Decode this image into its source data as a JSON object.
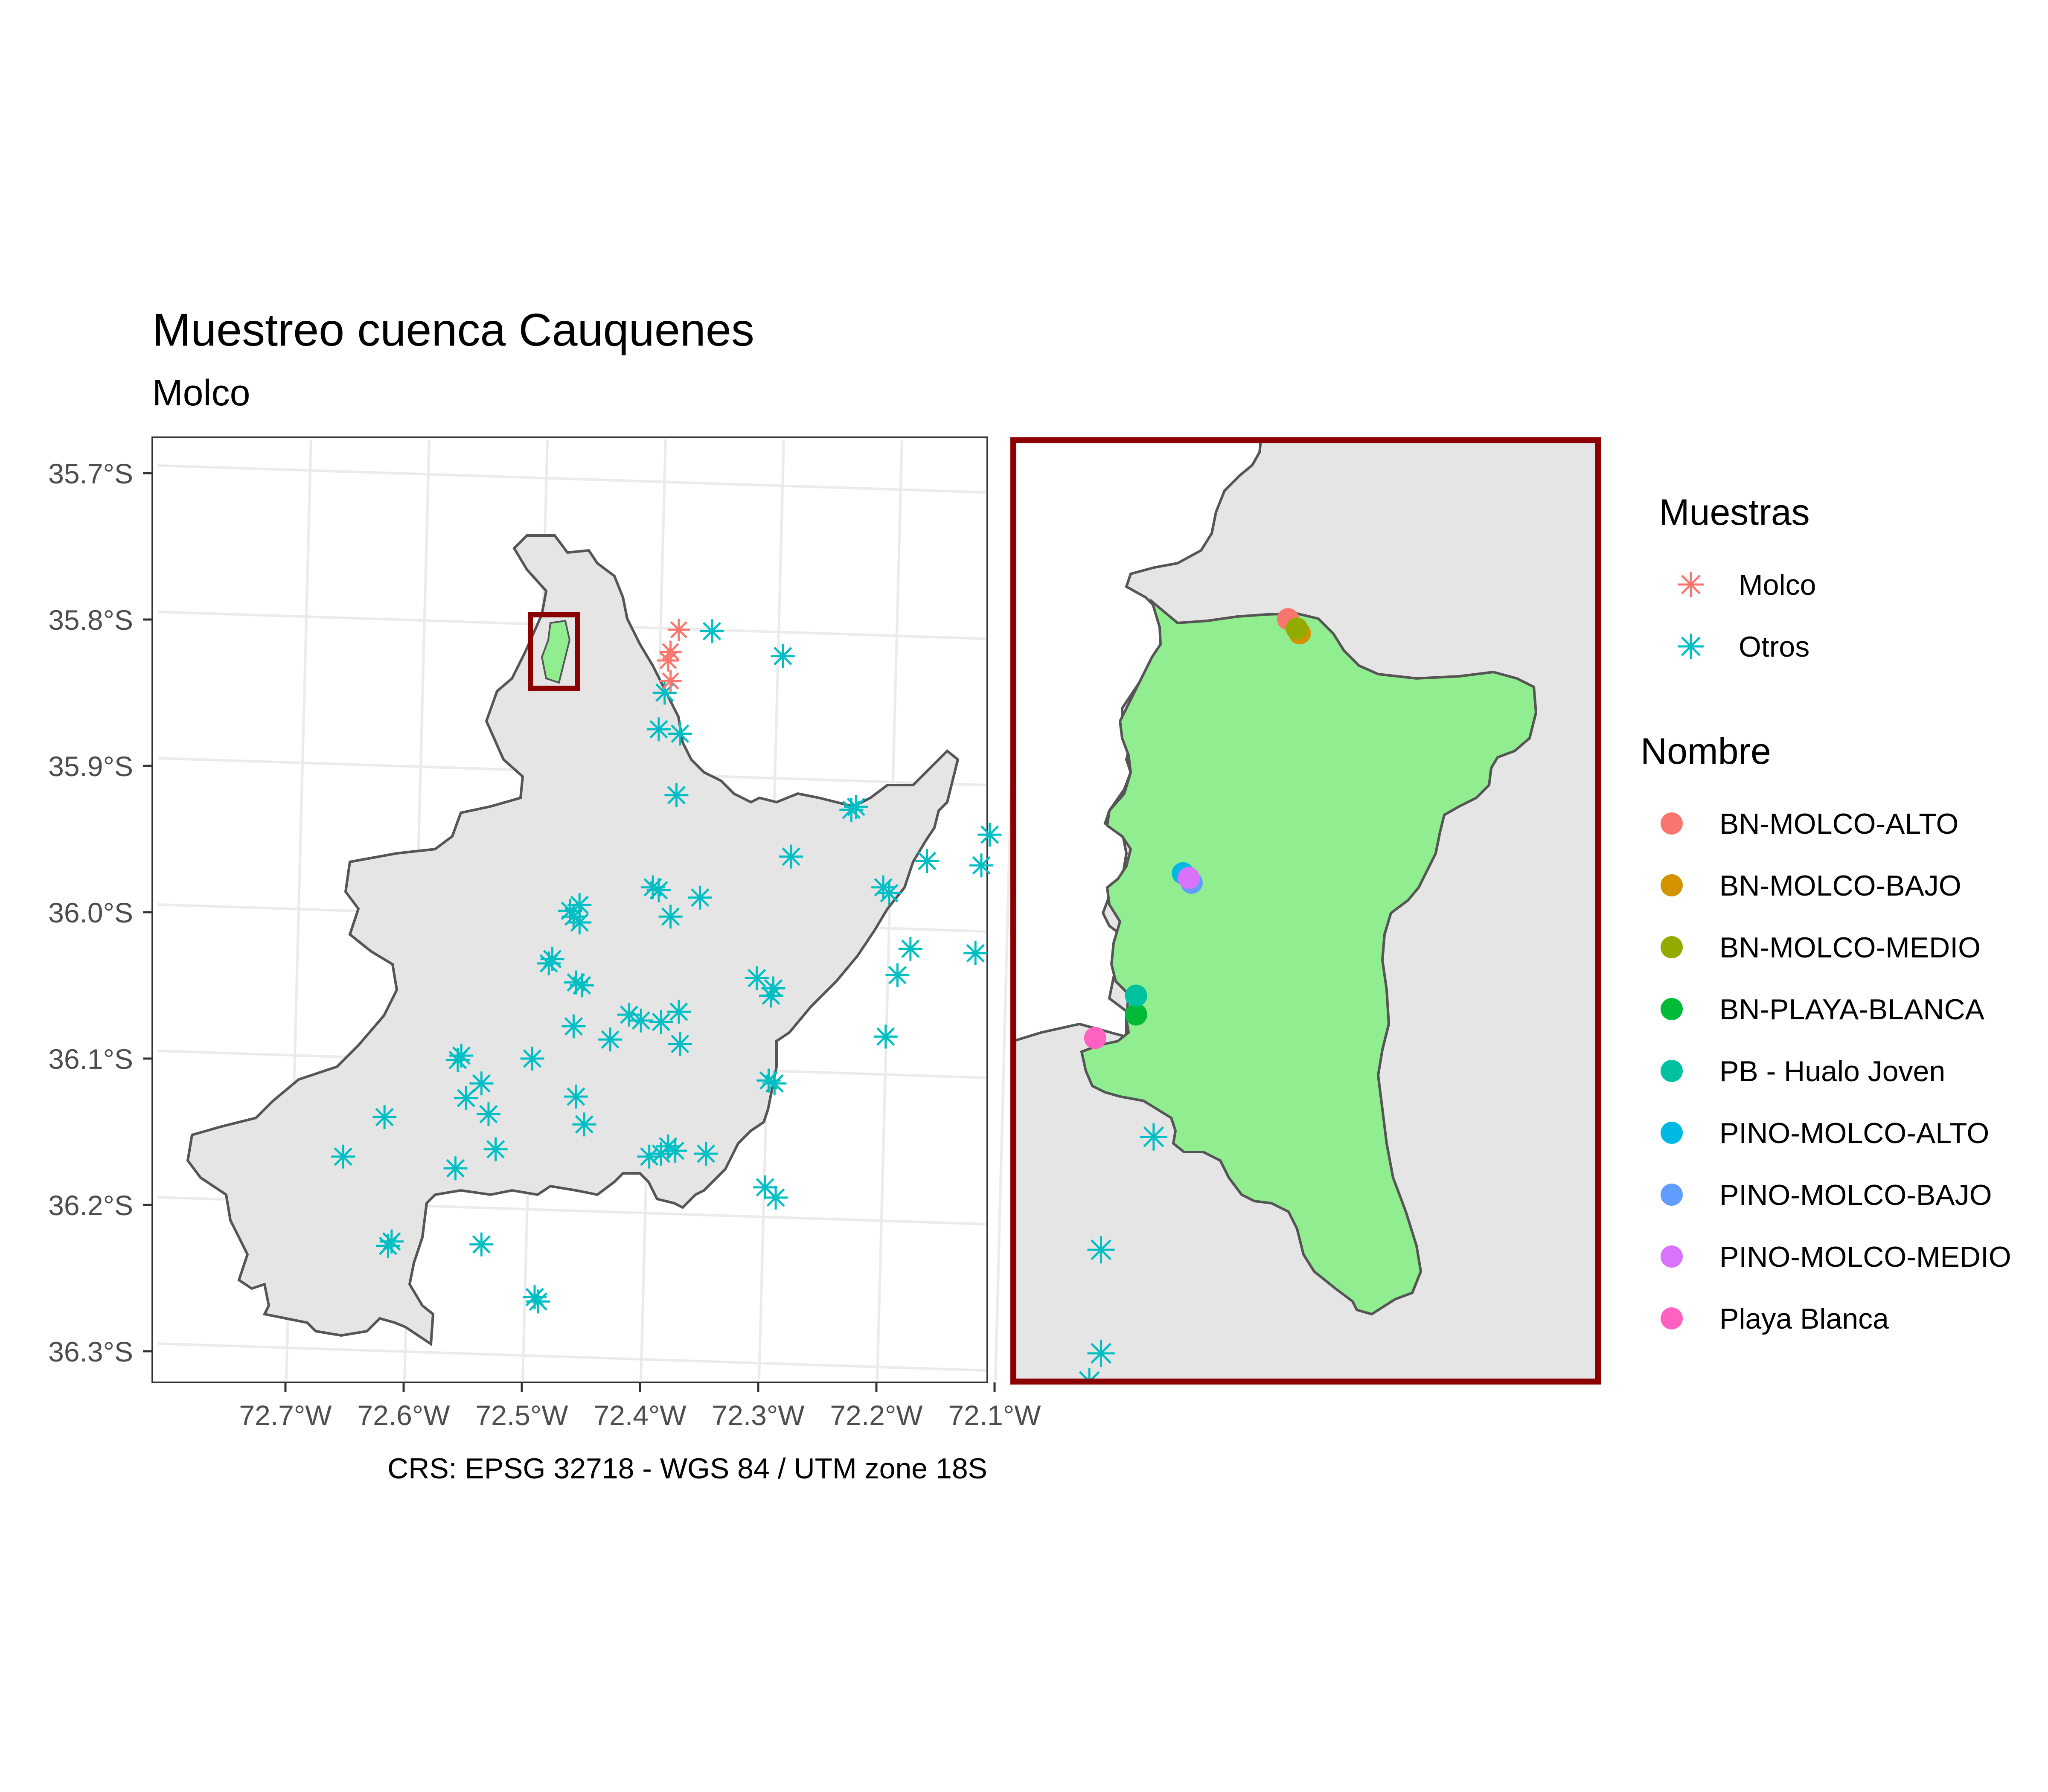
{
  "title": "Muestreo cuenca Cauquenes",
  "subtitle": "Molco",
  "caption": "CRS: EPSG 32718 - WGS 84 / UTM zone 18S",
  "axes": {
    "y_ticks": [
      "35.7°S",
      "35.8°S",
      "35.9°S",
      "36.0°S",
      "36.1°S",
      "36.2°S",
      "36.3°S"
    ],
    "x_ticks": [
      "72.7°W",
      "72.6°W",
      "72.5°W",
      "72.4°W",
      "72.3°W",
      "72.2°W",
      "72.1°W"
    ]
  },
  "legend_muestras": {
    "title": "Muestras",
    "items": [
      {
        "label": "Molco",
        "color": "#F8766D",
        "icon": "asterisk-icon"
      },
      {
        "label": "Otros",
        "color": "#00BFC4",
        "icon": "asterisk-icon"
      }
    ]
  },
  "legend_nombre": {
    "title": "Nombre",
    "items": [
      {
        "label": "BN-MOLCO-ALTO",
        "color": "#F8766D"
      },
      {
        "label": "BN-MOLCO-BAJO",
        "color": "#D39200"
      },
      {
        "label": "BN-MOLCO-MEDIO",
        "color": "#93AA00"
      },
      {
        "label": "BN-PLAYA-BLANCA",
        "color": "#00BA38"
      },
      {
        "label": "PB - Hualo Joven",
        "color": "#00C19F"
      },
      {
        "label": "PINO-MOLCO-ALTO",
        "color": "#00B9E3"
      },
      {
        "label": "PINO-MOLCO-BAJO",
        "color": "#619CFF"
      },
      {
        "label": "PINO-MOLCO-MEDIO",
        "color": "#DB72FB"
      },
      {
        "label": "Playa Blanca",
        "color": "#FF61C3"
      }
    ]
  },
  "colors": {
    "basin_fill": "#E5E5E5",
    "basin_border": "#555555",
    "subbasin_fill": "#90EE90",
    "inset_frame": "#8B0000",
    "grid": "#EBEBEB"
  },
  "map_data": {
    "otros_points": [
      [
        -72.35,
        -35.808
      ],
      [
        -72.29,
        -35.825
      ],
      [
        -72.39,
        -35.85
      ],
      [
        -72.395,
        -35.875
      ],
      [
        -72.377,
        -35.878
      ],
      [
        -72.38,
        -35.92
      ],
      [
        -72.232,
        -35.93
      ],
      [
        -72.228,
        -35.928
      ],
      [
        -72.115,
        -35.947
      ],
      [
        -72.045,
        -35.937
      ],
      [
        -72.283,
        -35.962
      ],
      [
        -72.168,
        -35.965
      ],
      [
        -72.122,
        -35.968
      ],
      [
        -72.205,
        -35.983
      ],
      [
        -72.2,
        -35.987
      ],
      [
        -72.4,
        -35.983
      ],
      [
        -72.395,
        -35.985
      ],
      [
        -72.36,
        -35.99
      ],
      [
        -72.462,
        -35.995
      ],
      [
        -72.47,
        -35.999
      ],
      [
        -72.467,
        -36.003
      ],
      [
        -72.385,
        -36.003
      ],
      [
        -72.462,
        -36.007
      ],
      [
        -72.182,
        -36.025
      ],
      [
        -72.127,
        -36.028
      ],
      [
        -72.485,
        -36.032
      ],
      [
        -72.488,
        -36.035
      ],
      [
        -72.312,
        -36.045
      ],
      [
        -72.193,
        -36.043
      ],
      [
        -72.465,
        -36.048
      ],
      [
        -72.46,
        -36.05
      ],
      [
        -72.298,
        -36.052
      ],
      [
        -72.3,
        -36.057
      ],
      [
        -72.378,
        -36.068
      ],
      [
        -72.42,
        -36.07
      ],
      [
        -72.41,
        -36.074
      ],
      [
        -72.393,
        -36.075
      ],
      [
        -72.467,
        -36.078
      ],
      [
        -72.436,
        -36.087
      ],
      [
        -72.377,
        -36.09
      ],
      [
        -72.203,
        -36.085
      ],
      [
        -72.562,
        -36.098
      ],
      [
        -72.565,
        -36.101
      ],
      [
        -72.502,
        -36.1
      ],
      [
        -72.545,
        -36.117
      ],
      [
        -72.302,
        -36.115
      ],
      [
        -72.297,
        -36.117
      ],
      [
        -72.558,
        -36.127
      ],
      [
        -72.465,
        -36.126
      ],
      [
        -72.627,
        -36.14
      ],
      [
        -72.539,
        -36.138
      ],
      [
        -72.458,
        -36.145
      ],
      [
        -72.387,
        -36.16
      ],
      [
        -72.533,
        -36.162
      ],
      [
        -72.381,
        -36.163
      ],
      [
        -72.393,
        -36.165
      ],
      [
        -72.403,
        -36.167
      ],
      [
        -72.355,
        -36.165
      ],
      [
        -72.662,
        -36.167
      ],
      [
        -72.567,
        -36.175
      ],
      [
        -72.305,
        -36.188
      ],
      [
        -72.296,
        -36.195
      ],
      [
        -72.621,
        -36.225
      ],
      [
        -72.624,
        -36.228
      ],
      [
        -72.545,
        -36.227
      ],
      [
        -72.5,
        -36.263
      ],
      [
        -72.497,
        -36.266
      ]
    ],
    "molco_points": [
      [
        -72.378,
        -35.807
      ],
      [
        -72.385,
        -35.822
      ],
      [
        -72.387,
        -35.828
      ],
      [
        -72.385,
        -35.842
      ]
    ],
    "inset_otros_points": [
      [
        0.24,
        0.74
      ],
      [
        0.15,
        0.86
      ],
      [
        0.15,
        0.97
      ],
      [
        0.13,
        1.0
      ]
    ],
    "inset_samples": [
      {
        "name": "BN-MOLCO-ALTO",
        "u": 0.47,
        "v": 0.19
      },
      {
        "name": "BN-MOLCO-BAJO",
        "u": 0.49,
        "v": 0.205
      },
      {
        "name": "BN-MOLCO-MEDIO",
        "u": 0.485,
        "v": 0.2
      },
      {
        "name": "BN-PLAYA-BLANCA",
        "u": 0.21,
        "v": 0.61
      },
      {
        "name": "PB - Hualo Joven",
        "u": 0.21,
        "v": 0.59
      },
      {
        "name": "PINO-MOLCO-ALTO",
        "u": 0.29,
        "v": 0.46
      },
      {
        "name": "PINO-MOLCO-BAJO",
        "u": 0.305,
        "v": 0.47
      },
      {
        "name": "PINO-MOLCO-MEDIO",
        "u": 0.3,
        "v": 0.465
      },
      {
        "name": "Playa Blanca",
        "u": 0.14,
        "v": 0.635
      }
    ]
  }
}
